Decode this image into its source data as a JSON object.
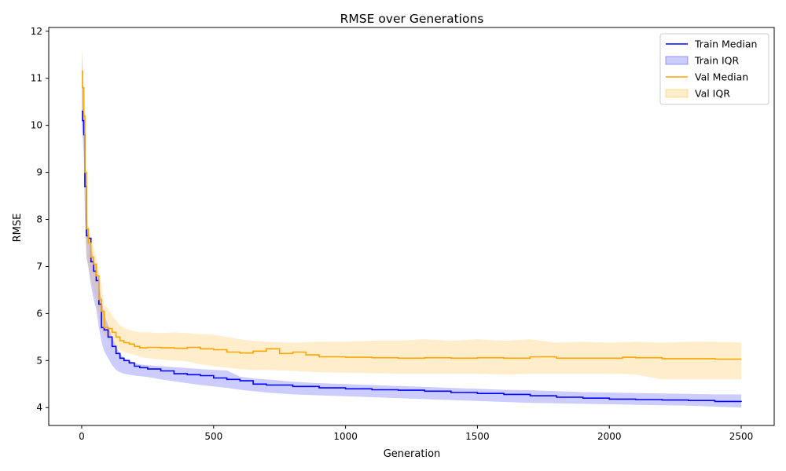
{
  "chart_data": {
    "type": "line",
    "title": "RMSE over Generations",
    "xlabel": "Generation",
    "ylabel": "RMSE",
    "xlim": [
      -125,
      2625
    ],
    "ylim": [
      3.62,
      12.08
    ],
    "xticks": [
      0,
      500,
      1000,
      1500,
      2000,
      2500
    ],
    "yticks": [
      4,
      5,
      6,
      7,
      8,
      9,
      10,
      11,
      12
    ],
    "grid": false,
    "legend_position": "top-right",
    "series": [
      {
        "name": "Train Median",
        "kind": "line",
        "color": "#0000ff",
        "x": [
          0,
          3,
          8,
          12,
          18,
          25,
          35,
          45,
          55,
          65,
          75,
          85,
          100,
          115,
          130,
          145,
          160,
          180,
          200,
          220,
          250,
          300,
          350,
          400,
          450,
          500,
          550,
          600,
          650,
          700,
          800,
          900,
          1000,
          1100,
          1200,
          1300,
          1400,
          1500,
          1600,
          1700,
          1800,
          1900,
          2000,
          2100,
          2200,
          2300,
          2400,
          2500
        ],
        "y": [
          10.3,
          10.1,
          9.8,
          8.7,
          7.65,
          7.6,
          7.1,
          6.9,
          6.7,
          6.2,
          5.7,
          5.65,
          5.5,
          5.3,
          5.15,
          5.05,
          5.0,
          4.95,
          4.88,
          4.85,
          4.82,
          4.78,
          4.72,
          4.7,
          4.68,
          4.63,
          4.6,
          4.57,
          4.5,
          4.48,
          4.45,
          4.42,
          4.4,
          4.38,
          4.37,
          4.35,
          4.32,
          4.3,
          4.28,
          4.25,
          4.22,
          4.2,
          4.18,
          4.17,
          4.16,
          4.15,
          4.13,
          4.12
        ]
      },
      {
        "name": "Train IQR",
        "kind": "band",
        "color": "#0000ff",
        "x": [
          0,
          3,
          8,
          12,
          18,
          25,
          35,
          45,
          55,
          65,
          75,
          85,
          100,
          115,
          130,
          145,
          160,
          180,
          200,
          220,
          250,
          300,
          350,
          400,
          450,
          500,
          550,
          600,
          650,
          700,
          800,
          900,
          1000,
          1100,
          1200,
          1300,
          1400,
          1500,
          1600,
          1700,
          1800,
          1900,
          2000,
          2100,
          2200,
          2300,
          2400,
          2500
        ],
        "upper": [
          11.6,
          11.0,
          10.5,
          9.0,
          7.9,
          7.7,
          7.4,
          7.2,
          6.9,
          6.6,
          6.3,
          6.0,
          5.75,
          5.5,
          5.3,
          5.15,
          5.05,
          5.0,
          4.95,
          4.92,
          4.9,
          4.88,
          4.86,
          4.84,
          4.82,
          4.8,
          4.79,
          4.66,
          4.62,
          4.6,
          4.55,
          4.52,
          4.5,
          4.48,
          4.46,
          4.44,
          4.42,
          4.4,
          4.38,
          4.37,
          4.35,
          4.33,
          4.32,
          4.31,
          4.3,
          4.29,
          4.28,
          4.28
        ],
        "lower": [
          10.0,
          9.8,
          9.4,
          8.0,
          7.2,
          7.0,
          6.6,
          6.3,
          6.1,
          5.7,
          5.4,
          5.2,
          5.05,
          4.9,
          4.8,
          4.75,
          4.72,
          4.7,
          4.68,
          4.67,
          4.65,
          4.6,
          4.56,
          4.52,
          4.48,
          4.45,
          4.42,
          4.38,
          4.35,
          4.32,
          4.28,
          4.26,
          4.24,
          4.22,
          4.2,
          4.18,
          4.16,
          4.14,
          4.12,
          4.1,
          4.09,
          4.08,
          4.07,
          4.06,
          4.05,
          4.04,
          4.02,
          4.0
        ]
      },
      {
        "name": "Val Median",
        "kind": "line",
        "color": "#ffa500",
        "x": [
          0,
          3,
          8,
          12,
          18,
          25,
          35,
          45,
          55,
          65,
          75,
          85,
          100,
          115,
          130,
          145,
          160,
          180,
          200,
          220,
          250,
          300,
          350,
          400,
          450,
          500,
          550,
          600,
          650,
          700,
          730,
          750,
          800,
          850,
          900,
          1000,
          1100,
          1200,
          1300,
          1400,
          1500,
          1600,
          1700,
          1800,
          1900,
          2000,
          2050,
          2100,
          2200,
          2300,
          2400,
          2500
        ],
        "y": [
          11.15,
          10.8,
          10.2,
          9.0,
          7.8,
          7.5,
          7.2,
          7.05,
          6.8,
          6.3,
          6.05,
          5.7,
          5.68,
          5.6,
          5.5,
          5.42,
          5.38,
          5.35,
          5.3,
          5.27,
          5.28,
          5.27,
          5.26,
          5.28,
          5.25,
          5.23,
          5.18,
          5.16,
          5.2,
          5.25,
          5.25,
          5.15,
          5.18,
          5.12,
          5.08,
          5.07,
          5.06,
          5.05,
          5.06,
          5.05,
          5.06,
          5.05,
          5.08,
          5.05,
          5.05,
          5.05,
          5.07,
          5.06,
          5.04,
          5.04,
          5.03,
          5.03
        ]
      },
      {
        "name": "Val IQR",
        "kind": "band",
        "color": "#ffa500",
        "x": [
          0,
          3,
          8,
          12,
          18,
          25,
          35,
          45,
          55,
          65,
          75,
          85,
          100,
          115,
          130,
          145,
          160,
          180,
          200,
          220,
          250,
          300,
          350,
          400,
          450,
          500,
          550,
          600,
          650,
          700,
          800,
          900,
          1000,
          1100,
          1200,
          1300,
          1400,
          1500,
          1600,
          1700,
          1800,
          1900,
          2000,
          2100,
          2200,
          2300,
          2400,
          2500
        ],
        "upper": [
          11.7,
          11.3,
          10.7,
          9.6,
          8.3,
          7.9,
          7.6,
          7.4,
          7.2,
          6.9,
          6.6,
          6.2,
          6.1,
          5.95,
          5.85,
          5.75,
          5.7,
          5.65,
          5.62,
          5.6,
          5.6,
          5.58,
          5.6,
          5.58,
          5.56,
          5.55,
          5.5,
          5.45,
          5.42,
          5.4,
          5.38,
          5.4,
          5.4,
          5.42,
          5.42,
          5.45,
          5.42,
          5.45,
          5.42,
          5.45,
          5.38,
          5.4,
          5.38,
          5.4,
          5.38,
          5.4,
          5.4,
          5.38
        ],
        "lower": [
          10.3,
          10.0,
          9.6,
          8.4,
          7.2,
          7.0,
          6.7,
          6.5,
          6.3,
          5.95,
          5.7,
          5.55,
          5.45,
          5.35,
          5.28,
          5.22,
          5.18,
          5.15,
          5.12,
          5.08,
          5.05,
          5.02,
          5.0,
          4.98,
          4.92,
          4.88,
          4.85,
          4.82,
          4.8,
          4.8,
          4.78,
          4.75,
          4.74,
          4.73,
          4.72,
          4.72,
          4.72,
          4.72,
          4.7,
          4.72,
          4.72,
          4.72,
          4.72,
          4.7,
          4.6,
          4.6,
          4.6,
          4.6
        ]
      }
    ]
  }
}
